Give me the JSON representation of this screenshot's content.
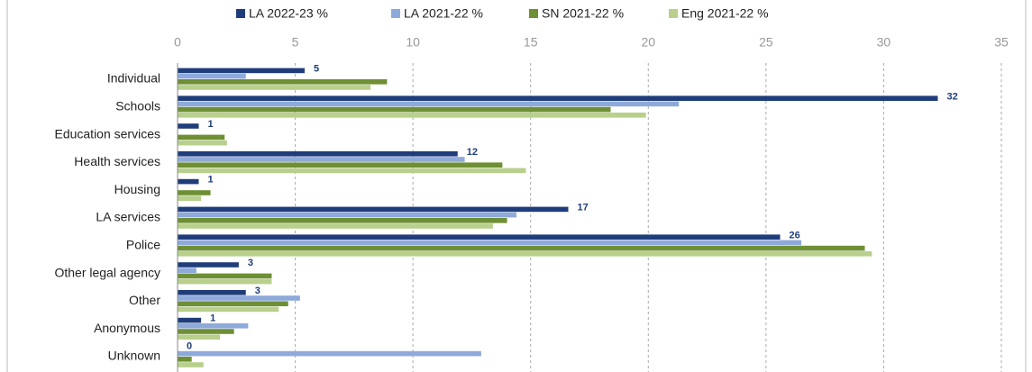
{
  "chart_data": {
    "type": "bar",
    "orientation": "horizontal",
    "categories": [
      "Individual",
      "Schools",
      "Education services",
      "Health services",
      "Housing",
      "LA services",
      "Police",
      "Other legal agency",
      "Other",
      "Anonymous",
      "Unknown"
    ],
    "series": [
      {
        "name": "LA 2022-23 %",
        "color": "#1f3d7a",
        "values": [
          5.4,
          32.3,
          0.9,
          11.9,
          0.9,
          16.6,
          25.6,
          2.6,
          2.9,
          1.0,
          0
        ],
        "value_labels": [
          "5",
          "32",
          "1",
          "12",
          "1",
          "17",
          "26",
          "3",
          "3",
          "1",
          "0"
        ]
      },
      {
        "name": "LA 2021-22 %",
        "color": "#8eaadb",
        "values": [
          2.9,
          21.3,
          0,
          12.2,
          0,
          14.4,
          26.5,
          0.8,
          5.2,
          3.0,
          12.9
        ]
      },
      {
        "name": "SN 2021-22 %",
        "color": "#6e8f34",
        "values": [
          8.9,
          18.4,
          2.0,
          13.8,
          1.4,
          14.0,
          29.2,
          4.0,
          4.7,
          2.4,
          0.6
        ]
      },
      {
        "name": "Eng 2021-22 %",
        "color": "#b8d08c",
        "values": [
          8.2,
          19.9,
          2.1,
          14.8,
          1.0,
          13.4,
          29.5,
          4.0,
          4.3,
          1.8,
          1.1
        ]
      }
    ],
    "xlim": [
      0,
      35
    ],
    "xticks": [
      0,
      5,
      10,
      15,
      20,
      25,
      30,
      35
    ],
    "grid": true,
    "legend": "top"
  }
}
